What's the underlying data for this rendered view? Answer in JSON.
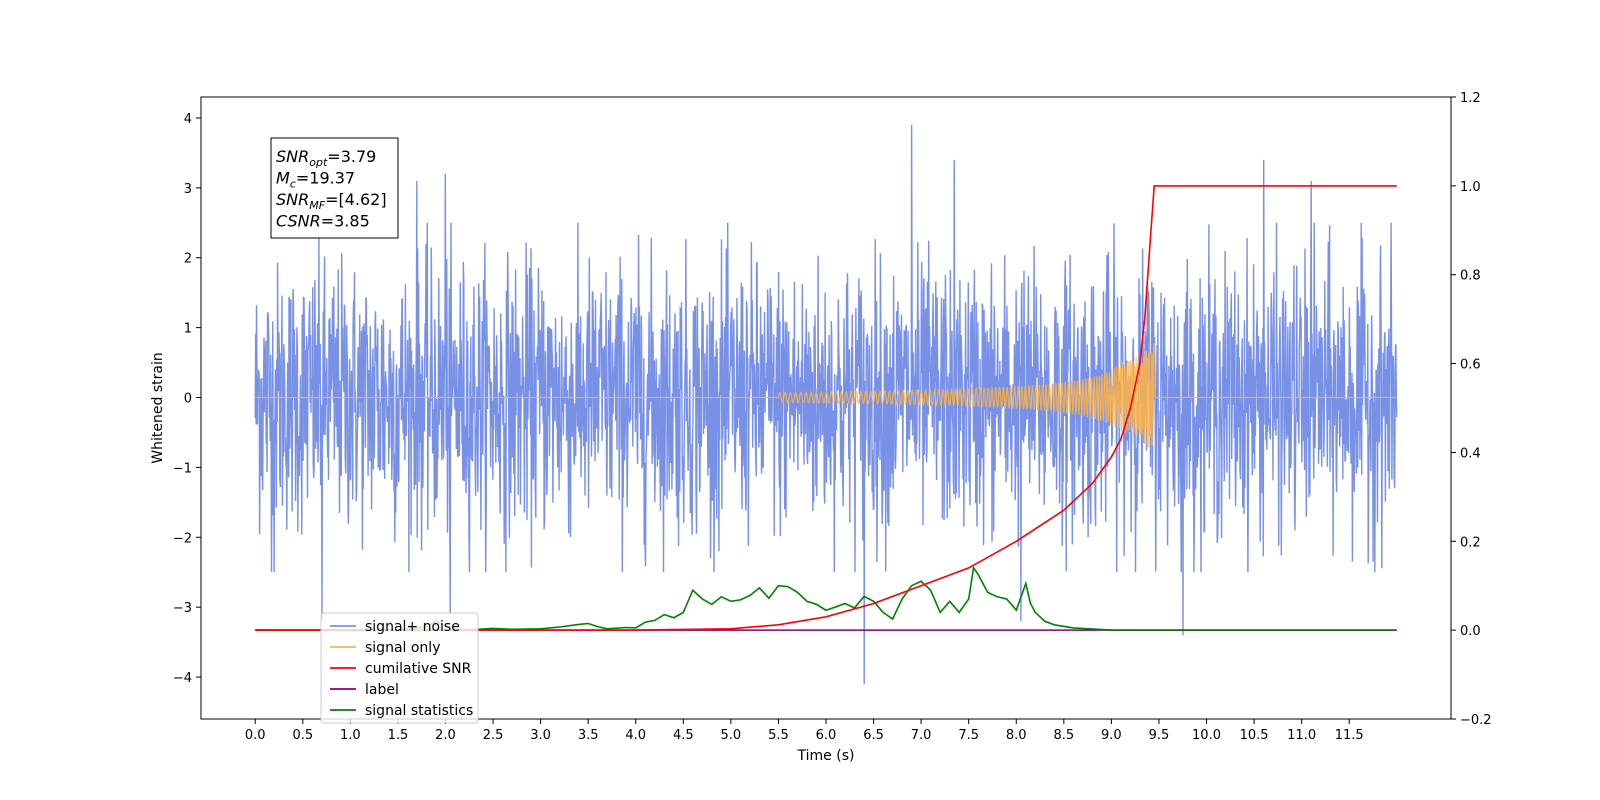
{
  "chart_data": {
    "type": "line",
    "xlabel": "Time (s)",
    "ylabel": "Whitened strain",
    "xlim": [
      -0.57,
      12.57
    ],
    "ylim": [
      -4.6,
      4.3
    ],
    "y2lim": [
      -0.2,
      1.2
    ],
    "x_ticks": [
      0.0,
      0.5,
      1.0,
      1.5,
      2.0,
      2.5,
      3.0,
      3.5,
      4.0,
      4.5,
      5.0,
      5.5,
      6.0,
      6.5,
      7.0,
      7.5,
      8.0,
      8.5,
      9.0,
      9.5,
      10.0,
      10.5,
      11.0,
      11.5
    ],
    "x_tick_labels": [
      "0.0",
      "0.5",
      "1.0",
      "1.5",
      "2.0",
      "2.5",
      "3.0",
      "3.5",
      "4.0",
      "4.5",
      "5.0",
      "5.5",
      "6.0",
      "6.5",
      "7.0",
      "7.5",
      "8.0",
      "8.5",
      "9.0",
      "9.5",
      "10.0",
      "10.5",
      "11.0",
      "11.5"
    ],
    "y_ticks": [
      -4,
      -3,
      -2,
      -1,
      0,
      1,
      2,
      3,
      4
    ],
    "y_tick_labels": [
      "−4",
      "−3",
      "−2",
      "−1",
      "0",
      "1",
      "2",
      "3",
      "4"
    ],
    "y2_ticks": [
      -0.2,
      0.0,
      0.2,
      0.4,
      0.6,
      0.8,
      1.0,
      1.2
    ],
    "y2_tick_labels": [
      "−0.2",
      "0.0",
      "0.2",
      "0.4",
      "0.6",
      "0.8",
      "1.0",
      "1.2"
    ],
    "grid": false,
    "legend_position": "lower-left",
    "annotation": {
      "lines": [
        {
          "main": "SNR",
          "sub": "opt",
          "rest": "=3.79"
        },
        {
          "main": "M",
          "sub": "c",
          "rest": "=19.37"
        },
        {
          "main": "SNR",
          "sub": "MF",
          "rest": "=[4.62]"
        },
        {
          "main": "CSNR",
          "sub": "",
          "rest": "=3.85"
        }
      ]
    },
    "series": [
      {
        "name": "signal+ noise",
        "color": "#7891e6",
        "axis": "left",
        "description": "noisy whitened strain, x from 0.0 to 12.0 s, amplitude roughly within ±2.3 with spikes to about ±4",
        "x_range": [
          0.0,
          12.0
        ],
        "typical_amplitude": 2.2,
        "spikes": [
          {
            "x": 6.9,
            "y": 3.9
          },
          {
            "x": 10.6,
            "y": 3.4
          },
          {
            "x": 7.35,
            "y": 3.4
          },
          {
            "x": 2.0,
            "y": 3.2
          },
          {
            "x": 11.1,
            "y": 3.1
          },
          {
            "x": 1.7,
            "y": 3.1
          },
          {
            "x": 6.4,
            "y": -4.1
          },
          {
            "x": 9.75,
            "y": -3.4
          },
          {
            "x": 0.7,
            "y": -3.2
          },
          {
            "x": 8.05,
            "y": -3.2
          },
          {
            "x": 2.05,
            "y": -3.1
          },
          {
            "x": 0.2,
            "y": -2.5
          }
        ]
      },
      {
        "name": "signal only",
        "color": "#ffb347",
        "axis": "left",
        "description": "chirp signal, flat at 0 until ~6 s, amplitude grows to about 0.78 at merger time 9.45 s, then 0",
        "x_range": [
          0.0,
          12.0
        ],
        "merger_time": 9.45,
        "peak_amplitude": 0.78
      },
      {
        "name": "cumilative SNR",
        "color": "#ff0000",
        "axis": "right",
        "x": [
          0.0,
          4.0,
          5.0,
          5.5,
          6.0,
          6.5,
          7.0,
          7.5,
          8.0,
          8.5,
          8.8,
          9.0,
          9.1,
          9.2,
          9.3,
          9.35,
          9.4,
          9.45,
          12.0
        ],
        "values": [
          0.0,
          0.0,
          0.003,
          0.012,
          0.03,
          0.06,
          0.1,
          0.14,
          0.2,
          0.27,
          0.33,
          0.39,
          0.43,
          0.5,
          0.6,
          0.7,
          0.85,
          1.0,
          1.0
        ]
      },
      {
        "name": "label",
        "color": "#800080",
        "axis": "right",
        "x": [
          0.0,
          12.0
        ],
        "values": [
          0.0,
          0.0
        ]
      },
      {
        "name": "signal statistics",
        "color": "#008000",
        "axis": "right",
        "x": [
          0.0,
          1.5,
          1.8,
          1.9,
          2.0,
          2.2,
          2.5,
          2.7,
          3.0,
          3.2,
          3.4,
          3.5,
          3.6,
          3.7,
          3.9,
          4.0,
          4.1,
          4.2,
          4.3,
          4.4,
          4.5,
          4.6,
          4.7,
          4.8,
          4.9,
          5.0,
          5.1,
          5.2,
          5.3,
          5.4,
          5.5,
          5.6,
          5.7,
          5.8,
          5.9,
          6.0,
          6.1,
          6.2,
          6.3,
          6.4,
          6.5,
          6.6,
          6.7,
          6.8,
          6.9,
          7.0,
          7.1,
          7.2,
          7.3,
          7.4,
          7.5,
          7.55,
          7.6,
          7.7,
          7.8,
          7.9,
          8.0,
          8.1,
          8.15,
          8.2,
          8.3,
          8.4,
          8.6,
          9.0,
          12.0
        ],
        "values": [
          0.0,
          0.0,
          0.007,
          0.02,
          0.01,
          0.0,
          0.004,
          0.002,
          0.003,
          0.007,
          0.013,
          0.015,
          0.008,
          0.003,
          0.006,
          0.005,
          0.018,
          0.022,
          0.035,
          0.028,
          0.04,
          0.09,
          0.07,
          0.058,
          0.075,
          0.065,
          0.068,
          0.078,
          0.095,
          0.072,
          0.1,
          0.098,
          0.085,
          0.065,
          0.058,
          0.045,
          0.052,
          0.06,
          0.05,
          0.076,
          0.065,
          0.04,
          0.025,
          0.07,
          0.1,
          0.11,
          0.09,
          0.04,
          0.065,
          0.04,
          0.07,
          0.14,
          0.125,
          0.085,
          0.075,
          0.07,
          0.045,
          0.105,
          0.06,
          0.04,
          0.02,
          0.012,
          0.005,
          0.0,
          0.0
        ]
      }
    ],
    "legend": [
      {
        "label": "signal+ noise",
        "color": "#7891e6"
      },
      {
        "label": "signal only",
        "color": "#ffb347"
      },
      {
        "label": "cumilative SNR",
        "color": "#ff0000"
      },
      {
        "label": "label",
        "color": "#800080"
      },
      {
        "label": "signal statistics",
        "color": "#008000"
      }
    ]
  }
}
